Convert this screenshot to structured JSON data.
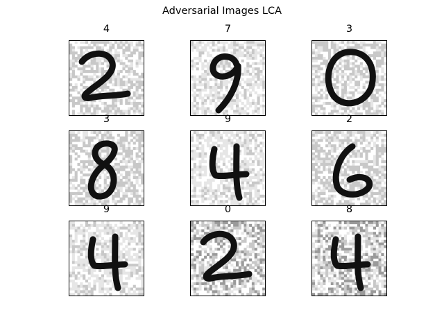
{
  "figure": {
    "title": "Adversarial Images LCA"
  },
  "panels": [
    {
      "label": "4",
      "digit": "2",
      "noise": "soft"
    },
    {
      "label": "7",
      "digit": "9",
      "noise": "light"
    },
    {
      "label": "3",
      "digit": "0",
      "noise": "soft"
    },
    {
      "label": "3",
      "digit": "8",
      "noise": "soft"
    },
    {
      "label": "9",
      "digit": "4",
      "noise": "light"
    },
    {
      "label": "2",
      "digit": "6",
      "noise": "soft"
    },
    {
      "label": "9",
      "digit": "4",
      "noise": "light"
    },
    {
      "label": "0",
      "digit": "2",
      "noise": "heavy"
    },
    {
      "label": "8",
      "digit": "4",
      "noise": "heavy"
    }
  ],
  "colors": {
    "background": "#ffffff",
    "stroke": "#111111",
    "noise_light": "#e6e6e6",
    "noise_mid": "#c8c8c8",
    "noise_dark": "#9a9a9a"
  }
}
